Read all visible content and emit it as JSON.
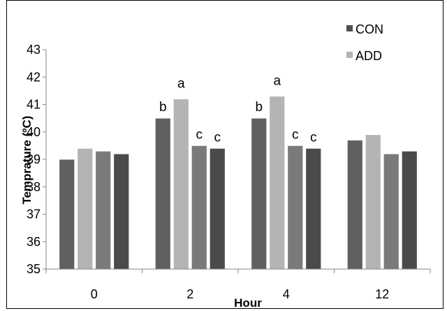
{
  "chart_data": {
    "type": "bar",
    "title": "",
    "xlabel": "Hour",
    "ylabel": "Temprature (ºC)",
    "ylim": [
      35,
      43
    ],
    "yticks": [
      35,
      36,
      37,
      38,
      39,
      40,
      41,
      42,
      43
    ],
    "categories": [
      "0",
      "2",
      "4",
      "12"
    ],
    "legend": {
      "placement": "top-right",
      "entries": [
        "CON",
        "ADD"
      ]
    },
    "bars_per_group": 4,
    "bar_values": [
      [
        39.0,
        39.4,
        39.3,
        39.2
      ],
      [
        40.5,
        41.2,
        39.5,
        39.4
      ],
      [
        40.5,
        41.3,
        39.5,
        39.4
      ],
      [
        39.7,
        39.9,
        39.2,
        39.3
      ]
    ],
    "bar_colors": [
      "#606060",
      "#b4b4b4",
      "#7a7a7a",
      "#4a4a4a"
    ],
    "significance_letters": [
      [
        "",
        "",
        "",
        ""
      ],
      [
        "b",
        "a",
        "c",
        "c"
      ],
      [
        "b",
        "a",
        "c",
        "c"
      ],
      [
        "",
        "",
        "",
        ""
      ]
    ],
    "grid": false
  },
  "legend_colors": {
    "CON": "#4f4f4f",
    "ADD": "#b4b4b4"
  }
}
